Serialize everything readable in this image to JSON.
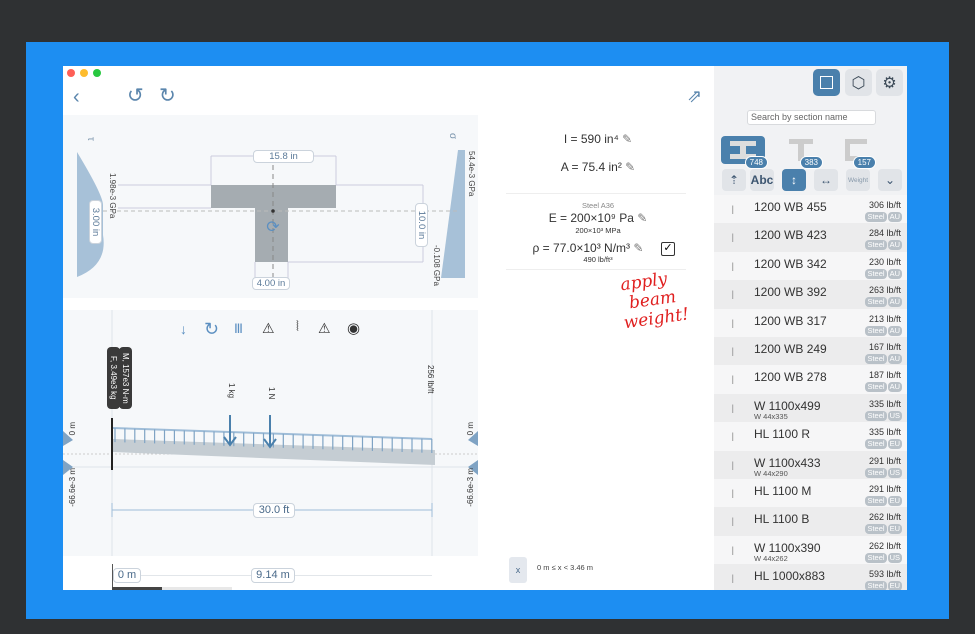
{
  "window": {
    "controls": [
      "close",
      "minimize",
      "zoom"
    ]
  },
  "toolbar": {
    "back_icon": "chevron-left-icon",
    "undo_icon": "undo-icon",
    "redo_icon": "redo-icon",
    "share_icon": "share-icon"
  },
  "section": {
    "tau_label": "τ",
    "sigma_label": "σ",
    "width_top": "15.8 in",
    "flange_thickness": "3.00 in",
    "height": "10.0 in",
    "web_width": "4.00 in",
    "tau_value": "1.98e-3 GPa",
    "sigma_top": "54.4e-3 GPa",
    "sigma_bottom": "-0.108 GPa"
  },
  "props": {
    "I": "I = 590 in⁴",
    "A": "A = 75.4 in²",
    "material": "Steel A36",
    "E": "E = 200×10⁹ Pa",
    "E_sub": "200×10³ MPa",
    "rho": "ρ = 77.0×10³ N/m³",
    "rho_sub": "490 lb/ft³",
    "apply_weight_checked": true,
    "annotation": [
      "apply",
      "beam",
      "weight!"
    ]
  },
  "beam": {
    "tools": [
      "point-load-icon",
      "moment-icon",
      "distributed-load-icon",
      "pin-support-icon",
      "fixed-support-icon",
      "roller-support-icon",
      "hinge-icon"
    ],
    "reaction_F": "F, 3.49e3 kg",
    "reaction_M": "M, 157e3 N-m",
    "load1": "1 kg",
    "load2": "1 N",
    "dist_load": "256 lb/ft",
    "left_top": "0 m",
    "left_bottom": "-66.6e-3 m",
    "right_top": "0 m",
    "right_bottom": "-66.6e-3 m",
    "length": "30.0 ft"
  },
  "ruler": {
    "start": "0 m",
    "end": "9.14 m"
  },
  "status": {
    "close": "x",
    "range": "0 m ≤ x < 3.46 m"
  },
  "sidebar": {
    "search_placeholder": "Search by section name",
    "shapes": [
      {
        "name": "I-shape",
        "count": "748",
        "active": true
      },
      {
        "name": "T-shape",
        "count": "383"
      },
      {
        "name": "C-shape",
        "count": "157"
      }
    ],
    "sort": [
      "sort-icon",
      "Abc",
      "vertical",
      "horizontal",
      "Weight",
      "chevron-down"
    ],
    "items": [
      {
        "name": "1200 WB 455",
        "sub": "",
        "weight": "306 lb/ft",
        "mat": "Steel",
        "region": "AU"
      },
      {
        "name": "1200 WB 423",
        "sub": "",
        "weight": "284 lb/ft",
        "mat": "Steel",
        "region": "AU"
      },
      {
        "name": "1200 WB 342",
        "sub": "",
        "weight": "230 lb/ft",
        "mat": "Steel",
        "region": "AU"
      },
      {
        "name": "1200 WB 392",
        "sub": "",
        "weight": "263 lb/ft",
        "mat": "Steel",
        "region": "AU"
      },
      {
        "name": "1200 WB 317",
        "sub": "",
        "weight": "213 lb/ft",
        "mat": "Steel",
        "region": "AU"
      },
      {
        "name": "1200 WB 249",
        "sub": "",
        "weight": "167 lb/ft",
        "mat": "Steel",
        "region": "AU"
      },
      {
        "name": "1200 WB 278",
        "sub": "",
        "weight": "187 lb/ft",
        "mat": "Steel",
        "region": "AU"
      },
      {
        "name": "W 1100x499",
        "sub": "W 44x335",
        "weight": "335 lb/ft",
        "mat": "Steel",
        "region": "US"
      },
      {
        "name": "HL 1100 R",
        "sub": "",
        "weight": "335 lb/ft",
        "mat": "Steel",
        "region": "EU"
      },
      {
        "name": "W 1100x433",
        "sub": "W 44x290",
        "weight": "291 lb/ft",
        "mat": "Steel",
        "region": "US"
      },
      {
        "name": "HL 1100 M",
        "sub": "",
        "weight": "291 lb/ft",
        "mat": "Steel",
        "region": "EU"
      },
      {
        "name": "HL 1100 B",
        "sub": "",
        "weight": "262 lb/ft",
        "mat": "Steel",
        "region": "EU"
      },
      {
        "name": "W 1100x390",
        "sub": "W 44x262",
        "weight": "262 lb/ft",
        "mat": "Steel",
        "region": "US"
      },
      {
        "name": "HL 1000x883",
        "sub": "",
        "weight": "593 lb/ft",
        "mat": "Steel",
        "region": "EU"
      }
    ]
  },
  "colors": {
    "accent": "#4a80ac",
    "frame": "#2f3133",
    "background": "#1d8ef2",
    "annotation": "#e02020"
  }
}
